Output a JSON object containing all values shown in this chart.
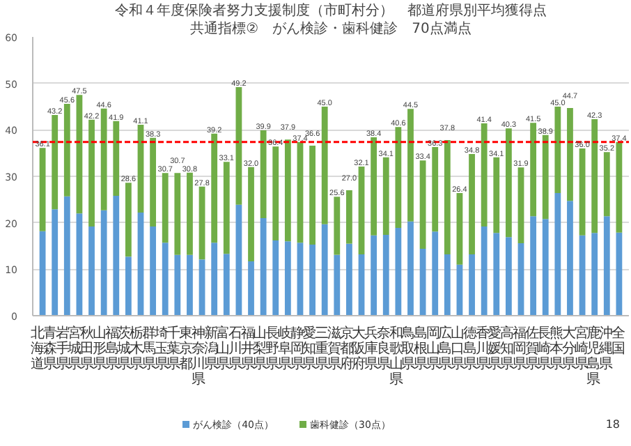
{
  "chart_data": {
    "type": "bar",
    "stacked": true,
    "title": "令和４年度保険者努力支援制度（市町村分）　都道府県別平均獲得点",
    "subtitle": "共通指標②　がん検診・歯科健診　70点満点",
    "categories": [
      "北海道",
      "青森県",
      "岩手県",
      "宮城県",
      "秋田県",
      "山形県",
      "福島県",
      "茨城県",
      "栃木県",
      "群馬県",
      "埼玉県",
      "千葉県",
      "東京都",
      "神奈川県",
      "新潟県",
      "富山県",
      "石川県",
      "福井県",
      "山梨県",
      "長野県",
      "岐阜県",
      "静岡県",
      "愛知県",
      "三重県",
      "滋賀県",
      "京都府",
      "大阪府",
      "兵庫県",
      "奈良県",
      "和歌山県",
      "鳥取県",
      "島根県",
      "岡山県",
      "広島県",
      "山口県",
      "徳島県",
      "香川県",
      "愛媛県",
      "高知県",
      "福岡県",
      "佐賀県",
      "長崎県",
      "熊本県",
      "大分県",
      "宮崎県",
      "鹿児島県",
      "沖縄県",
      "全国"
    ],
    "series": [
      {
        "name": "がん検診（40点）",
        "color": "#5b9bd5",
        "values": [
          18.2,
          22.9,
          25.7,
          22.0,
          19.2,
          22.7,
          25.8,
          12.7,
          22.2,
          19.2,
          15.7,
          13.1,
          13.1,
          12.1,
          15.7,
          13.3,
          23.9,
          11.7,
          21.0,
          16.2,
          16.0,
          15.7,
          15.3,
          19.7,
          13.1,
          15.5,
          13.2,
          17.3,
          17.4,
          18.9,
          20.3,
          14.4,
          18.1,
          13.2,
          11.0,
          13.2,
          19.2,
          17.8,
          16.9,
          15.6,
          21.4,
          20.8,
          26.4,
          24.7,
          17.3,
          17.8,
          21.4,
          17.9
        ]
      },
      {
        "name": "歯科健診（30点）",
        "color": "#70ad47",
        "values": [
          17.9,
          20.3,
          19.9,
          25.5,
          23.0,
          21.9,
          16.1,
          15.9,
          18.9,
          19.1,
          15.0,
          17.6,
          17.7,
          15.7,
          23.5,
          19.8,
          25.3,
          20.3,
          18.9,
          20.2,
          21.9,
          21.7,
          21.3,
          25.3,
          12.5,
          11.5,
          18.9,
          21.1,
          16.7,
          21.7,
          24.2,
          19.0,
          18.2,
          24.6,
          15.4,
          21.6,
          22.2,
          16.3,
          23.4,
          16.3,
          20.1,
          18.1,
          18.6,
          20.0,
          18.7,
          24.5,
          13.8,
          19.5
        ]
      }
    ],
    "totals": [
      "36.1",
      "43.2",
      "45.6",
      "47.5",
      "42.2",
      "44.6",
      "41.9",
      "28.6",
      "41.1",
      "38.3",
      "30.7",
      "30.7",
      "30.8",
      "27.8",
      "39.2",
      "33.1",
      "49.2",
      "32.0",
      "39.9",
      "36.4",
      "37.9",
      "37.4",
      "36.6",
      "45.0",
      "25.6",
      "27.0",
      "32.1",
      "38.4",
      "34.1",
      "40.6",
      "44.5",
      "33.4",
      "36.3",
      "37.8",
      "26.4",
      "34.8",
      "41.4",
      "34.1",
      "40.3",
      "31.9",
      "41.5",
      "38.9",
      "45.0",
      "44.7",
      "36.0",
      "42.3",
      "35.2",
      "37.4"
    ],
    "ylim": [
      0,
      60
    ],
    "yticks": [
      0,
      10,
      20,
      30,
      40,
      50,
      60
    ],
    "grid": "y",
    "legend": "bottom",
    "ref_lines": [
      {
        "axis": "y",
        "value": 37.4,
        "color": "#ff0000",
        "line_style": "dashed"
      }
    ],
    "annotations": [
      "18"
    ]
  }
}
